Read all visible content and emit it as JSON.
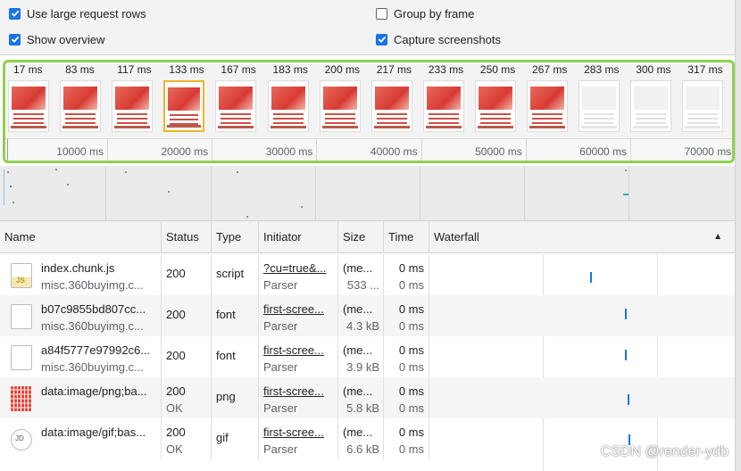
{
  "settings": {
    "large_rows": {
      "label": "Use large request rows",
      "checked": true
    },
    "group_by_frame": {
      "label": "Group by frame",
      "checked": false
    },
    "show_overview": {
      "label": "Show overview",
      "checked": true
    },
    "capture_screenshots": {
      "label": "Capture screenshots",
      "checked": true
    }
  },
  "filmstrip": {
    "frames": [
      "17 ms",
      "83 ms",
      "117 ms",
      "133 ms",
      "167 ms",
      "183 ms",
      "200 ms",
      "217 ms",
      "233 ms",
      "250 ms",
      "267 ms",
      "283 ms",
      "300 ms",
      "317 ms"
    ],
    "selected_index": 3,
    "ruler": [
      "10000 ms",
      "20000 ms",
      "30000 ms",
      "40000 ms",
      "50000 ms",
      "60000 ms",
      "70000 ms"
    ]
  },
  "columns": {
    "name": "Name",
    "status": "Status",
    "type": "Type",
    "initiator": "Initiator",
    "size": "Size",
    "time": "Time",
    "waterfall": "Waterfall",
    "sort_icon": "▲"
  },
  "requests": [
    {
      "name": "index.chunk.js",
      "domain": "misc.360buyimg.c...",
      "status": "200",
      "status_text": "",
      "type": "script",
      "initiator": "?cu=true&...",
      "initiator_sub": "Parser",
      "size": "(me...",
      "size_sub": "533 ...",
      "time": "0 ms",
      "time_sub": "0 ms",
      "icon": "js-file-icon"
    },
    {
      "name": "b07c9855bd807cc...",
      "domain": "misc.360buyimg.c...",
      "status": "200",
      "status_text": "",
      "type": "font",
      "initiator": "first-scree...",
      "initiator_sub": "Parser",
      "size": "(me...",
      "size_sub": "4.3 kB",
      "time": "0 ms",
      "time_sub": "0 ms",
      "icon": "file-icon"
    },
    {
      "name": "a84f5777e97992c6...",
      "domain": "misc.360buyimg.c...",
      "status": "200",
      "status_text": "",
      "type": "font",
      "initiator": "first-scree...",
      "initiator_sub": "Parser",
      "size": "(me...",
      "size_sub": "3.9 kB",
      "time": "0 ms",
      "time_sub": "0 ms",
      "icon": "file-icon"
    },
    {
      "name": "data:image/png;ba...",
      "domain": "",
      "status": "200",
      "status_text": "OK",
      "type": "png",
      "initiator": "first-scree...",
      "initiator_sub": "Parser",
      "size": "(me...",
      "size_sub": "5.8 kB",
      "time": "0 ms",
      "time_sub": "0 ms",
      "icon": "image-thumbnail-icon"
    },
    {
      "name": "data:image/gif;bas...",
      "domain": "",
      "status": "200",
      "status_text": "OK",
      "type": "gif",
      "initiator": "first-scree...",
      "initiator_sub": "Parser",
      "size": "(me...",
      "size_sub": "6.6 kB",
      "time": "0 ms",
      "time_sub": "0 ms",
      "icon": "gif-logo-icon"
    }
  ],
  "watermark": "CSDN @render-ydb",
  "colors": {
    "accent": "#1a73e8",
    "filmstrip_border": "#8fd14f",
    "selected_frame": "#f0b429"
  }
}
